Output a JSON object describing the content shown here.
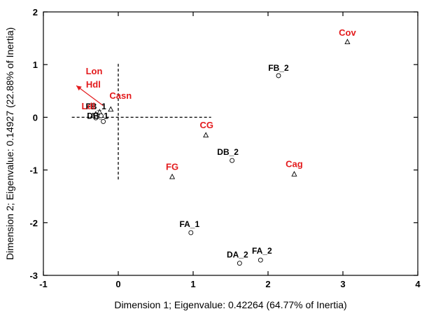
{
  "chart_data": {
    "type": "scatter",
    "title": "",
    "xlabel": "Dimension 1; Eigenvalue: 0.42264 (64.77% of Inertia)",
    "ylabel": "Dimension 2; Eigenvalue: 0.14927 (22.88% of Inertia)",
    "xlim": [
      -1,
      4
    ],
    "ylim": [
      -3,
      2
    ],
    "xticks": [
      "-1",
      "0",
      "1",
      "2",
      "3",
      "4"
    ],
    "yticks": [
      "-3",
      "-2",
      "-1",
      "0",
      "1",
      "2"
    ],
    "grid": false,
    "colors": {
      "row_points": "#000000",
      "column_points": "#e31a1c"
    },
    "series": [
      {
        "marker": "circle",
        "color": "#000000",
        "points": [
          {
            "label": "FB_2",
            "x": 2.14,
            "y": 0.79
          },
          {
            "label": "DB_2",
            "x": 1.52,
            "y": -0.82
          },
          {
            "label": "FA_1",
            "x": 0.97,
            "y": -2.19
          },
          {
            "label": "DA_2",
            "x": 1.62,
            "y": -2.77
          },
          {
            "label": "FA_2",
            "x": 1.9,
            "y": -2.71
          },
          {
            "label": "FB_1",
            "x": -0.27,
            "y": 0.02
          },
          {
            "label": "DB_1",
            "x": -0.2,
            "y": -0.08
          },
          {
            "label": "",
            "x": -0.3,
            "y": -0.01
          },
          {
            "label": "",
            "x": -0.23,
            "y": 0.03
          }
        ]
      },
      {
        "marker": "triangle",
        "color": "#e31a1c",
        "points": [
          {
            "label": "Cov",
            "x": 3.06,
            "y": 1.43
          },
          {
            "label": "CG",
            "x": 1.17,
            "y": -0.34
          },
          {
            "label": "FG",
            "x": 0.72,
            "y": -1.13
          },
          {
            "label": "Cag",
            "x": 2.35,
            "y": -1.08
          },
          {
            "label": "Casn",
            "x": -0.1,
            "y": 0.15
          },
          {
            "label": "Lon",
            "x": -0.34,
            "y": 0.03
          },
          {
            "label": "Hdl",
            "x": -0.3,
            "y": 0.06
          },
          {
            "label": "Ldl",
            "x": -0.25,
            "y": 0.1
          }
        ]
      }
    ],
    "reference_lines": [
      {
        "orientation": "horizontal",
        "at": 0,
        "from": -0.62,
        "to": 1.24,
        "style": "dashed"
      },
      {
        "orientation": "vertical",
        "at": 0,
        "from": -1.18,
        "to": 1.04,
        "style": "dashed"
      }
    ],
    "arrow": {
      "from": [
        -0.2,
        0.22
      ],
      "to": [
        -0.56,
        0.6
      ],
      "color": "#e31a1c"
    }
  }
}
